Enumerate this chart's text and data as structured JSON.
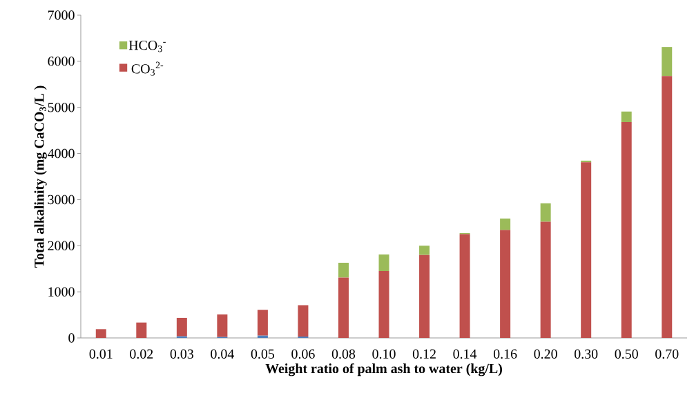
{
  "chart_data": {
    "type": "bar",
    "stacked": true,
    "xlabel": "Weight ratio of  palm ash to water (kg/L)",
    "ylabel": "Total alkalinity (mg CaCO$_{3}$/L )",
    "categories": [
      "0.01",
      "0.02",
      "0.03",
      "0.04",
      "0.05",
      "0.06",
      "0.08",
      "0.10",
      "0.12",
      "0.14",
      "0.16",
      "0.20",
      "0.30",
      "0.50",
      "0.70"
    ],
    "series": [
      {
        "color": "#4f81bd",
        "values": [
          0,
          0,
          35,
          20,
          50,
          30,
          0,
          0,
          0,
          0,
          0,
          0,
          0,
          0,
          0
        ]
      },
      {
        "name": "CO$_{3}$$^{2-}$",
        "color": "#c0504d",
        "values": [
          190,
          334,
          400,
          490,
          560,
          680,
          1310,
          1450,
          1800,
          2250,
          2340,
          2520,
          3810,
          4680,
          5680
        ]
      },
      {
        "name": "HCO$_{3}$$^{-}$",
        "color": "#9bbb59",
        "values": [
          0,
          0,
          0,
          0,
          0,
          0,
          320,
          360,
          200,
          25,
          250,
          400,
          35,
          230,
          630
        ]
      }
    ],
    "ylim": [
      0,
      7000
    ],
    "yticks": [
      0,
      1000,
      2000,
      3000,
      4000,
      5000,
      6000,
      7000
    ],
    "grid": false,
    "legend": "top left"
  }
}
